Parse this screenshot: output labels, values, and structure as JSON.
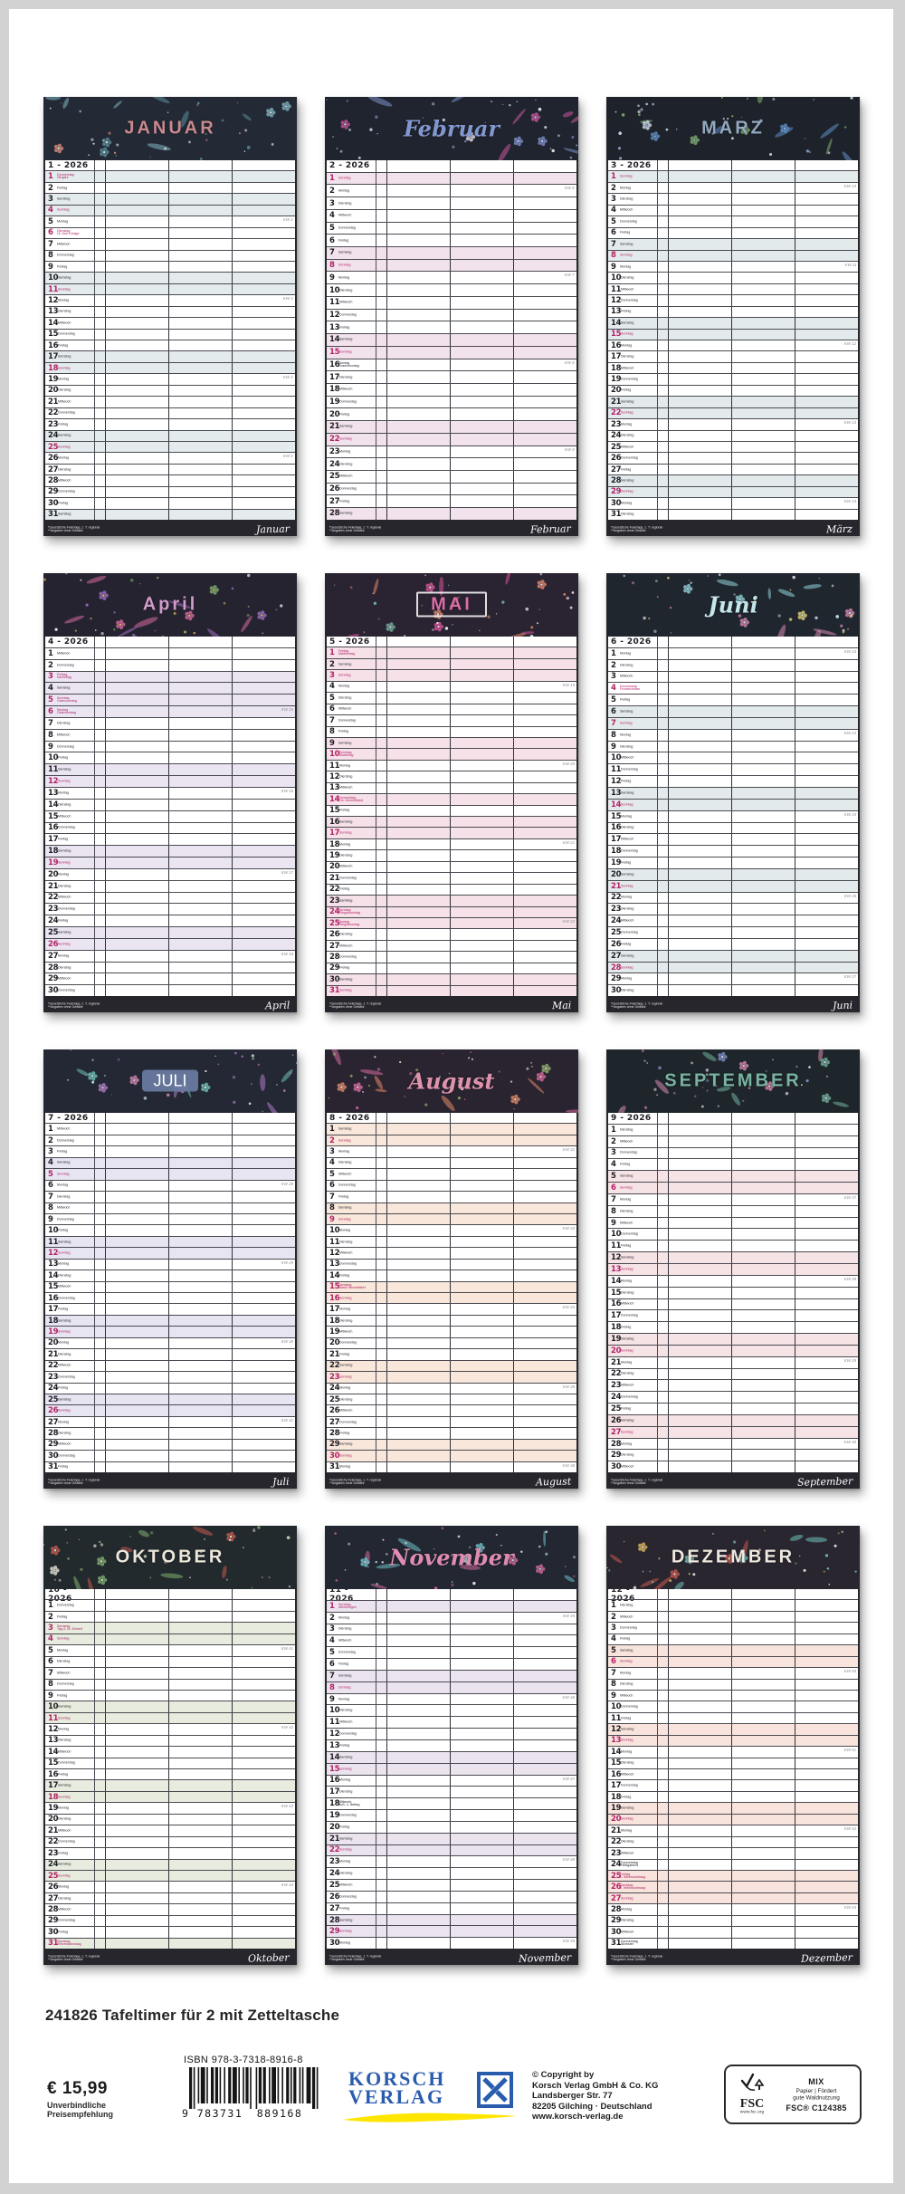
{
  "page": {
    "title_line": "241826 Tafeltimer für 2 mit Zetteltasche"
  },
  "year": "2026",
  "weekdays": [
    "Montag",
    "Dienstag",
    "Mittwoch",
    "Donnerstag",
    "Freitag",
    "Samstag",
    "Sonntag"
  ],
  "kw_prefix": "KW",
  "legend": {
    "line1": "*Gesetzliche Feiertage, z. T. regional",
    "line2": "**Angaben ohne Gewähr"
  },
  "calendars": [
    {
      "id": "januar",
      "num": 1,
      "name": "JANUAR",
      "footer": "Januar",
      "kind": "caps",
      "name_color": "#c9898f",
      "bg": "#232a36",
      "tint": "#e4ebed",
      "art": "fern-branches",
      "accents": [
        "#7fb3bd",
        "#5d8d99",
        "#d98d7a",
        "#dfe9ec"
      ],
      "start": 3,
      "count": 31,
      "kw_first": 2,
      "holidays": {
        "1": "Neujahr",
        "6": "Hl. Drei Könige"
      },
      "red": [
        1,
        6
      ],
      "tinted": [
        1
      ]
    },
    {
      "id": "februar",
      "num": 2,
      "name": "Februar",
      "footer": "Februar",
      "kind": "script",
      "name_color": "#8296d0",
      "bg": "#20242e",
      "tint": "#f2e2eb",
      "art": "flower-vines",
      "accents": [
        "#c9559c",
        "#7c8fc9",
        "#e8e2ee",
        "#d0d8f0"
      ],
      "start": 6,
      "count": 28,
      "kw_first": 6,
      "holidays": {
        "16": "Rosenmontag"
      },
      "red": [],
      "tinted": []
    },
    {
      "id": "maerz",
      "num": 3,
      "name": "MÄRZ",
      "footer": "März",
      "kind": "caps",
      "name_color": "#93a9c0",
      "bg": "#1e222b",
      "tint": "#e3eaec",
      "art": "crocuses-raindrops",
      "accents": [
        "#5e8fc6",
        "#7fae6f",
        "#cfe0ea",
        "#9fb8d8"
      ],
      "start": 6,
      "count": 31,
      "kw_first": 10,
      "holidays": {},
      "red": [],
      "tinted": []
    },
    {
      "id": "april",
      "num": 4,
      "name": "April",
      "footer": "April",
      "kind": "caps",
      "name_color": "#cf9ccb",
      "bg": "#262330",
      "tint": "#ebe5f1",
      "art": "spring-flowers-butterflies",
      "accents": [
        "#d46a9e",
        "#9a6ec0",
        "#7fae6f",
        "#e0c35f"
      ],
      "start": 2,
      "count": 30,
      "kw_first": 15,
      "holidays": {
        "3": "Karfreitag",
        "5": "Ostersonntag",
        "6": "Ostermontag"
      },
      "red": [
        3,
        6
      ],
      "tinted": [
        3,
        6
      ]
    },
    {
      "id": "mai",
      "num": 5,
      "name": "MAI",
      "footer": "Mai",
      "kind": "badge",
      "name_color": "#d86ea6",
      "bg": "#2a2331",
      "tint": "#f6e1e9",
      "art": "flower-badge",
      "accents": [
        "#d4569c",
        "#e08a6a",
        "#6fae9f",
        "#f0d0e0"
      ],
      "start": 4,
      "count": 31,
      "kw_first": 19,
      "holidays": {
        "1": "Maifeiertag",
        "10": "Muttertag",
        "14": "Chr. Himmelfahrt",
        "24": "Pfingstsonntag",
        "25": "Pfingstmontag"
      },
      "red": [
        1,
        14,
        25
      ],
      "tinted": [
        1,
        14,
        25
      ]
    },
    {
      "id": "juni",
      "num": 6,
      "name": "Juni",
      "footer": "Juni",
      "kind": "script",
      "name_color": "#c3e6ea",
      "bg": "#20262e",
      "tint": "#e3eaeb",
      "art": "hanging-blossoms",
      "accents": [
        "#8fd0d8",
        "#d487b0",
        "#e0cf7a",
        "#cfeaf0"
      ],
      "start": 0,
      "count": 30,
      "kw_first": 23,
      "holidays": {
        "4": "Fronleichnam"
      },
      "red": [
        4
      ],
      "tinted": []
    },
    {
      "id": "juli",
      "num": 7,
      "name": "JULI",
      "footer": "Juli",
      "kind": "box",
      "name_color": "#ffffff",
      "bg": "#232834",
      "tint": "#e8e5f2",
      "art": "butterflies",
      "accents": [
        "#6fc0b8",
        "#b07ac6",
        "#d487b0",
        "#cfe8e4"
      ],
      "start": 2,
      "count": 31,
      "kw_first": 28,
      "holidays": {},
      "red": [],
      "tinted": []
    },
    {
      "id": "august",
      "num": 8,
      "name": "August",
      "footer": "August",
      "kind": "script",
      "name_color": "#de93ad",
      "bg": "#2a2430",
      "tint": "#f8e7da",
      "art": "summer-flowers",
      "accents": [
        "#e0896a",
        "#d46a9e",
        "#8fae6f",
        "#f0d8c8"
      ],
      "start": 5,
      "count": 31,
      "kw_first": 32,
      "holidays": {
        "15": "Mariä Himmelfahrt"
      },
      "red": [
        15
      ],
      "tinted": []
    },
    {
      "id": "september",
      "num": 9,
      "name": "SEPTEMBER",
      "footer": "September",
      "kind": "caps",
      "name_color": "#79b3a3",
      "bg": "#1f262b",
      "tint": "#f5e3e5",
      "art": "chalk-leaves",
      "accents": [
        "#6fae9f",
        "#d487b0",
        "#7a90c6",
        "#e8d8dc"
      ],
      "start": 1,
      "count": 30,
      "kw_first": 37,
      "holidays": {},
      "red": [],
      "tinted": []
    },
    {
      "id": "oktober",
      "num": 10,
      "name": "OKTOBER",
      "footer": "Oktober",
      "kind": "caps",
      "name_color": "#ece8dc",
      "bg": "#232a2e",
      "tint": "#e7ecdf",
      "art": "apples",
      "accents": [
        "#c65a4f",
        "#7fae6f",
        "#e8e4da",
        "#d8e0c8"
      ],
      "start": 3,
      "count": 31,
      "kw_first": 41,
      "holidays": {
        "3": "Tag d. Dt. Einheit",
        "31": "Reformationstag"
      },
      "red": [
        3,
        31
      ],
      "tinted": [
        3
      ]
    },
    {
      "id": "november",
      "num": 11,
      "name": "November",
      "footer": "November",
      "kind": "script",
      "name_color": "#de8cb0",
      "bg": "#232732",
      "tint": "#ebe4ef",
      "art": "umbrella-flowers",
      "accents": [
        "#6fc0c8",
        "#d46a9e",
        "#e8e0ec",
        "#b0d8dc"
      ],
      "start": 6,
      "count": 30,
      "kw_first": 45,
      "holidays": {
        "1": "Allerheiligen",
        "18": "Buß- u. Bettag"
      },
      "red": [
        1
      ],
      "tinted": []
    },
    {
      "id": "dezember",
      "num": 12,
      "name": "DEZEMBER",
      "footer": "Dezember",
      "kind": "caps",
      "name_color": "#efe9e0",
      "bg": "#2a2630",
      "tint": "#f8e4dd",
      "art": "christmas-ornaments",
      "accents": [
        "#c65a4f",
        "#6fc0b8",
        "#d8b85f",
        "#f0e0d8"
      ],
      "start": 1,
      "count": 31,
      "kw_first": 50,
      "holidays": {
        "24": "Heiligabend",
        "25": "1. Weihnachtstag",
        "26": "2. Weihnachtstag",
        "31": "Silvester"
      },
      "red": [
        25,
        26
      ],
      "tinted": [
        25
      ]
    }
  ],
  "footer": {
    "price": "€ 15,99",
    "price_note_1": "Unverbindliche",
    "price_note_2": "Preisempfehlung",
    "isbn": "ISBN 978-3-7318-8916-8",
    "ean_display": "9 783731 889168",
    "publisher_name_1": "KORSCH",
    "publisher_name_2": "VERLAG",
    "copyright": [
      "© Copyright by",
      "Korsch Verlag GmbH & Co. KG",
      "Landsberger Str. 77",
      "82205 Gilching · Deutschland",
      "www.korsch-verlag.de"
    ],
    "fsc": {
      "label": "FSC",
      "url": "www.fsc.org",
      "mix": "MIX",
      "line1": "Papier | Fördert",
      "line2": "gute Waldnutzung",
      "code": "FSC® C124385"
    }
  },
  "colors": {
    "holiday_red": "#b32368",
    "footer_strip": "#26262c",
    "publisher_blue": "#2a5cae",
    "swoosh_yellow": "#ffe600",
    "frame_grey": "#d2d2d2"
  }
}
